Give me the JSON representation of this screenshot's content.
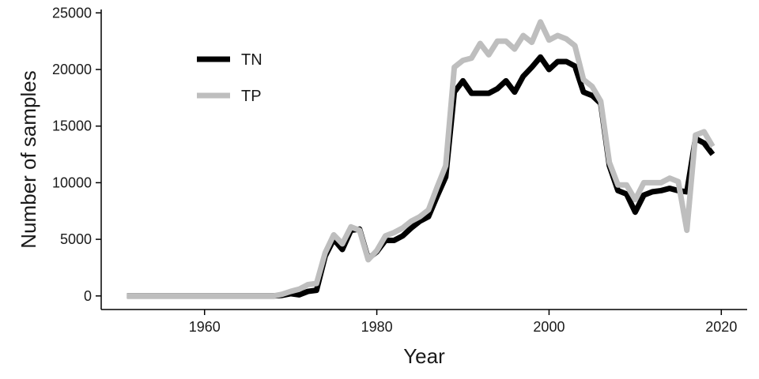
{
  "chart_data": {
    "type": "line",
    "title": "",
    "xlabel": "Year",
    "ylabel": "Number of samples",
    "xlim": [
      1948,
      2023
    ],
    "ylim": [
      -1200,
      25300
    ],
    "x_ticks": [
      1960,
      1980,
      2000,
      2020
    ],
    "x_tick_labels": [
      "1960",
      "1980",
      "2000",
      "2020"
    ],
    "y_ticks": [
      0,
      5000,
      10000,
      15000,
      20000,
      25000
    ],
    "y_tick_labels": [
      "0",
      "5000",
      "10000",
      "15000",
      "20000",
      "25000"
    ],
    "grid": false,
    "legend": {
      "placement": "top-left",
      "entries": [
        "TN",
        "TP"
      ]
    },
    "series": [
      {
        "name": "TN",
        "color": "#000000",
        "x": [
          1951,
          1952,
          1953,
          1954,
          1955,
          1956,
          1957,
          1958,
          1959,
          1960,
          1961,
          1962,
          1963,
          1964,
          1965,
          1966,
          1967,
          1968,
          1969,
          1970,
          1971,
          1972,
          1973,
          1974,
          1975,
          1976,
          1977,
          1978,
          1979,
          1980,
          1981,
          1982,
          1983,
          1984,
          1985,
          1986,
          1987,
          1988,
          1989,
          1990,
          1991,
          1992,
          1993,
          1994,
          1995,
          1996,
          1997,
          1998,
          1999,
          2000,
          2001,
          2002,
          2003,
          2004,
          2005,
          2006,
          2007,
          2008,
          2009,
          2010,
          2011,
          2012,
          2013,
          2014,
          2015,
          2016,
          2017,
          2018,
          2019
        ],
        "values": [
          0,
          0,
          0,
          0,
          0,
          0,
          0,
          0,
          0,
          0,
          0,
          0,
          0,
          0,
          0,
          0,
          0,
          0,
          50,
          200,
          100,
          400,
          500,
          3500,
          5000,
          4100,
          5800,
          5900,
          3300,
          3900,
          4900,
          4900,
          5300,
          6000,
          6600,
          7000,
          8800,
          10500,
          18000,
          19000,
          17900,
          17900,
          17900,
          18300,
          19000,
          18000,
          19400,
          20200,
          21100,
          20000,
          20700,
          20700,
          20300,
          18000,
          17700,
          17000,
          11500,
          9300,
          9000,
          7400,
          8900,
          9200,
          9300,
          9500,
          9300,
          9200,
          13900,
          13500,
          12500
        ]
      },
      {
        "name": "TP",
        "color": "#bebebe",
        "x": [
          1951,
          1952,
          1953,
          1954,
          1955,
          1956,
          1957,
          1958,
          1959,
          1960,
          1961,
          1962,
          1963,
          1964,
          1965,
          1966,
          1967,
          1968,
          1969,
          1970,
          1971,
          1972,
          1973,
          1974,
          1975,
          1976,
          1977,
          1978,
          1979,
          1980,
          1981,
          1982,
          1983,
          1984,
          1985,
          1986,
          1987,
          1988,
          1989,
          1990,
          1991,
          1992,
          1993,
          1994,
          1995,
          1996,
          1997,
          1998,
          1999,
          2000,
          2001,
          2002,
          2003,
          2004,
          2005,
          2006,
          2007,
          2008,
          2009,
          2010,
          2011,
          2012,
          2013,
          2014,
          2015,
          2016,
          2017,
          2018,
          2019
        ],
        "values": [
          0,
          0,
          0,
          0,
          0,
          0,
          0,
          0,
          0,
          0,
          0,
          0,
          0,
          0,
          0,
          0,
          0,
          0,
          150,
          400,
          600,
          1000,
          1100,
          3800,
          5400,
          4600,
          6100,
          5800,
          3200,
          4000,
          5300,
          5600,
          6000,
          6600,
          7000,
          7600,
          9600,
          11500,
          20200,
          20800,
          21000,
          22300,
          21300,
          22500,
          22500,
          21800,
          23000,
          22400,
          24200,
          22600,
          23000,
          22700,
          22100,
          19100,
          18500,
          17200,
          11800,
          9800,
          9800,
          8500,
          10000,
          10000,
          10000,
          10400,
          10100,
          5800,
          14200,
          14500,
          13200
        ]
      }
    ]
  }
}
